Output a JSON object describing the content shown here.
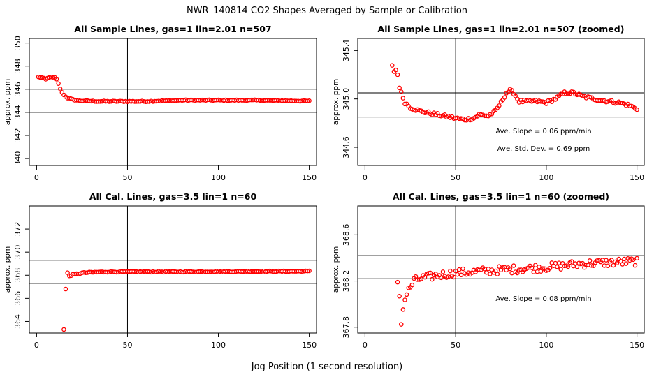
{
  "figure": {
    "title": "NWR_140814  CO2 Shapes Averaged by Sample or Calibration",
    "xlabel": "Jog Position (1 second resolution)"
  },
  "colors": {
    "points": "#ff0000",
    "lines": "#000000",
    "background": "#ffffff"
  },
  "chart_data": [
    {
      "type": "scatter",
      "title": "All Sample Lines, gas=1 lin=2.01 n=507",
      "xlabel": "",
      "ylabel": "approx. ppm",
      "xlim": [
        -4,
        154
      ],
      "ylim": [
        339.4,
        350.4
      ],
      "xticks": [
        "0",
        "50",
        "100",
        "150"
      ],
      "xtick_values": [
        0,
        50,
        100,
        150
      ],
      "yticks": [
        "340",
        "342",
        "344",
        "346",
        "348",
        "350"
      ],
      "ytick_values": [
        340,
        342,
        344,
        346,
        348,
        350
      ],
      "vline": 50,
      "hlines": [
        344,
        346
      ],
      "annotations": [],
      "series": [
        {
          "gen": "profile",
          "x_start": 1,
          "x_end": 150,
          "knots": [
            [
              1,
              347.05
            ],
            [
              3,
              347.0
            ],
            [
              5,
              346.85
            ],
            [
              7,
              347.05
            ],
            [
              10,
              347.0
            ],
            [
              11,
              346.85
            ],
            [
              12,
              346.5
            ],
            [
              13,
              346.0
            ],
            [
              15,
              345.5
            ],
            [
              17,
              345.25
            ],
            [
              20,
              345.1
            ],
            [
              24,
              345.0
            ],
            [
              35,
              344.95
            ],
            [
              60,
              344.95
            ],
            [
              80,
              345.05
            ],
            [
              100,
              345.05
            ],
            [
              120,
              345.05
            ],
            [
              140,
              345.0
            ],
            [
              150,
              344.98
            ]
          ],
          "noise": 0.04
        }
      ]
    },
    {
      "type": "scatter",
      "title": "All Sample Lines, gas=1 lin=2.01 n=507 (zoomed)",
      "xlabel": "",
      "ylabel": "approx. ppm",
      "xlim": [
        -4,
        154
      ],
      "ylim": [
        344.45,
        345.5
      ],
      "xticks": [
        "0",
        "50",
        "100",
        "150"
      ],
      "xtick_values": [
        0,
        50,
        100,
        150
      ],
      "yticks": [
        "344.6",
        "345.0",
        "345.4"
      ],
      "ytick_values": [
        344.6,
        345.0,
        345.4
      ],
      "vline": 50,
      "hlines": [
        344.85,
        345.05
      ],
      "annotations": [
        "Ave. Slope =  0.06  ppm/min",
        "Ave. Std. Dev. =  0.69  ppm"
      ],
      "series": [
        {
          "gen": "profile",
          "x_start": 15,
          "x_end": 150,
          "knots": [
            [
              15,
              345.27
            ],
            [
              16,
              345.23
            ],
            [
              17,
              345.24
            ],
            [
              18,
              345.2
            ],
            [
              19,
              345.1
            ],
            [
              20,
              345.05
            ],
            [
              22,
              344.97
            ],
            [
              25,
              344.93
            ],
            [
              30,
              344.9
            ],
            [
              40,
              344.87
            ],
            [
              50,
              344.84
            ],
            [
              55,
              344.83
            ],
            [
              60,
              344.84
            ],
            [
              63,
              344.87
            ],
            [
              68,
              344.86
            ],
            [
              72,
              344.9
            ],
            [
              75,
              344.97
            ],
            [
              78,
              345.05
            ],
            [
              80,
              345.07
            ],
            [
              82,
              345.05
            ],
            [
              85,
              344.98
            ],
            [
              90,
              344.98
            ],
            [
              95,
              344.98
            ],
            [
              100,
              344.97
            ],
            [
              105,
              345.0
            ],
            [
              110,
              345.05
            ],
            [
              115,
              345.05
            ],
            [
              120,
              345.02
            ],
            [
              130,
              344.99
            ],
            [
              135,
              344.98
            ],
            [
              140,
              344.97
            ],
            [
              145,
              344.95
            ],
            [
              150,
              344.92
            ]
          ],
          "noise": 0.012
        }
      ]
    },
    {
      "type": "scatter",
      "title": "All Cal. Lines, gas=3.5 lin=1 n=60",
      "xlabel": "",
      "ylabel": "approx. ppm",
      "xlim": [
        -4,
        154
      ],
      "ylim": [
        363.0,
        374.0
      ],
      "xticks": [
        "0",
        "50",
        "100",
        "150"
      ],
      "xtick_values": [
        0,
        50,
        100,
        150
      ],
      "yticks": [
        "364",
        "366",
        "368",
        "370",
        "372"
      ],
      "ytick_values": [
        364,
        366,
        368,
        370,
        372
      ],
      "vline": 50,
      "hlines": [
        367.3,
        369.3
      ],
      "annotations": [],
      "series": [
        {
          "gen": "profile",
          "x_start": 15,
          "x_end": 150,
          "knots": [
            [
              15,
              363.3
            ],
            [
              16,
              366.8
            ],
            [
              17,
              368.2
            ],
            [
              18,
              367.95
            ],
            [
              20,
              368.05
            ],
            [
              25,
              368.2
            ],
            [
              30,
              368.25
            ],
            [
              40,
              368.3
            ],
            [
              80,
              368.3
            ],
            [
              150,
              368.35
            ]
          ],
          "noise": 0.04
        }
      ]
    },
    {
      "type": "scatter",
      "title": "All Cal. Lines, gas=3.5 lin=1 n=60 (zoomed)",
      "xlabel": "",
      "ylabel": "approx. ppm",
      "xlim": [
        -4,
        154
      ],
      "ylim": [
        367.75,
        368.85
      ],
      "xticks": [
        "0",
        "50",
        "100",
        "150"
      ],
      "xtick_values": [
        0,
        50,
        100,
        150
      ],
      "yticks": [
        "367.8",
        "368.2",
        "368.6"
      ],
      "ytick_values": [
        367.8,
        368.2,
        368.6
      ],
      "vline": 50,
      "hlines": [
        368.22,
        368.42
      ],
      "annotations": [
        "Ave. Slope =  0.08  ppm/min"
      ],
      "series": [
        {
          "gen": "profile",
          "x_start": 18,
          "x_end": 150,
          "knots": [
            [
              18,
              368.2
            ],
            [
              19,
              368.07
            ],
            [
              20,
              367.85
            ],
            [
              21,
              367.95
            ],
            [
              22,
              368.05
            ],
            [
              24,
              368.12
            ],
            [
              27,
              368.2
            ],
            [
              30,
              368.22
            ],
            [
              40,
              368.25
            ],
            [
              50,
              368.27
            ],
            [
              60,
              368.28
            ],
            [
              80,
              368.3
            ],
            [
              100,
              368.32
            ],
            [
              120,
              368.35
            ],
            [
              150,
              368.37
            ]
          ],
          "noise": 0.035
        }
      ]
    }
  ]
}
